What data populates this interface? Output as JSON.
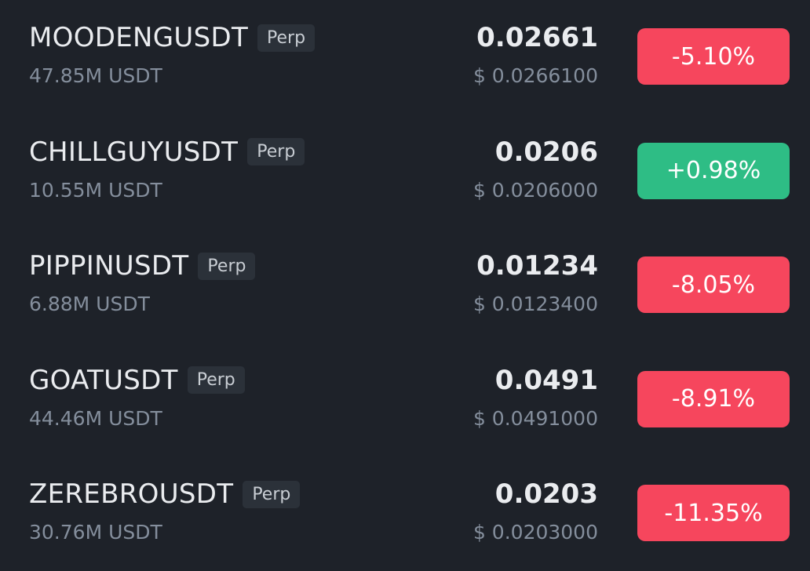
{
  "colors": {
    "down": "#f6465d",
    "up": "#2ebd85",
    "background": "#1e2229"
  },
  "rows": [
    {
      "symbol": "MOODENGUSDT",
      "badge": "Perp",
      "volume": "47.85M USDT",
      "price": "0.02661",
      "usd_price": "$ 0.0266100",
      "change": "-5.10%",
      "direction": "down"
    },
    {
      "symbol": "CHILLGUYUSDT",
      "badge": "Perp",
      "volume": "10.55M USDT",
      "price": "0.0206",
      "usd_price": "$ 0.0206000",
      "change": "+0.98%",
      "direction": "up"
    },
    {
      "symbol": "PIPPINUSDT",
      "badge": "Perp",
      "volume": "6.88M USDT",
      "price": "0.01234",
      "usd_price": "$ 0.0123400",
      "change": "-8.05%",
      "direction": "down"
    },
    {
      "symbol": "GOATUSDT",
      "badge": "Perp",
      "volume": "44.46M USDT",
      "price": "0.0491",
      "usd_price": "$ 0.0491000",
      "change": "-8.91%",
      "direction": "down"
    },
    {
      "symbol": "ZEREBROUSDT",
      "badge": "Perp",
      "volume": "30.76M USDT",
      "price": "0.0203",
      "usd_price": "$ 0.0203000",
      "change": "-11.35%",
      "direction": "down"
    }
  ]
}
